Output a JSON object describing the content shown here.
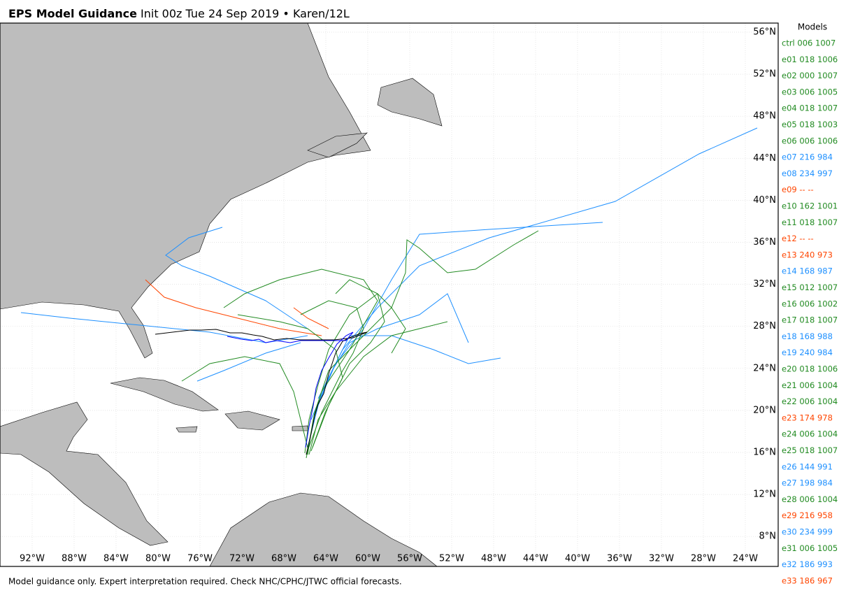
{
  "header": {
    "title_bold": "EPS Model Guidance",
    "title_rest": "Init 00z Tue 24 Sep 2019 • Karen/12L"
  },
  "map": {
    "lon_labels": [
      "92°W",
      "88°W",
      "84°W",
      "80°W",
      "76°W",
      "72°W",
      "68°W",
      "64°W",
      "60°W",
      "56°W",
      "52°W",
      "48°W",
      "44°W",
      "40°W",
      "36°W",
      "32°W",
      "28°W",
      "24°W"
    ],
    "lat_labels": [
      "56°N",
      "52°N",
      "48°N",
      "44°N",
      "40°N",
      "36°N",
      "32°N",
      "28°N",
      "24°N",
      "20°N",
      "16°N",
      "12°N",
      "8°N"
    ]
  },
  "legend": {
    "title": "Models",
    "entries": [
      {
        "label": "ctrl 006 1007",
        "color": "#228b22"
      },
      {
        "label": "e01 018 1006",
        "color": "#228b22"
      },
      {
        "label": "e02 000 1007",
        "color": "#228b22"
      },
      {
        "label": "e03 006 1005",
        "color": "#228b22"
      },
      {
        "label": "e04 018 1007",
        "color": "#228b22"
      },
      {
        "label": "e05 018 1003",
        "color": "#228b22"
      },
      {
        "label": "e06 006 1006",
        "color": "#228b22"
      },
      {
        "label": "e07 216 984",
        "color": "#1e90ff"
      },
      {
        "label": "e08 234 997",
        "color": "#1e90ff"
      },
      {
        "label": "e09 -- --",
        "color": "#ff4500"
      },
      {
        "label": "e10 162 1001",
        "color": "#228b22"
      },
      {
        "label": "e11 018 1007",
        "color": "#228b22"
      },
      {
        "label": "e12 -- --",
        "color": "#ff4500"
      },
      {
        "label": "e13 240 973",
        "color": "#ff4500"
      },
      {
        "label": "e14 168 987",
        "color": "#1e90ff"
      },
      {
        "label": "e15 012 1007",
        "color": "#228b22"
      },
      {
        "label": "e16 006 1002",
        "color": "#228b22"
      },
      {
        "label": "e17 018 1007",
        "color": "#228b22"
      },
      {
        "label": "e18 168 988",
        "color": "#1e90ff"
      },
      {
        "label": "e19 240 984",
        "color": "#1e90ff"
      },
      {
        "label": "e20 018 1006",
        "color": "#228b22"
      },
      {
        "label": "e21 006 1004",
        "color": "#228b22"
      },
      {
        "label": "e22 006 1004",
        "color": "#228b22"
      },
      {
        "label": "e23 174 978",
        "color": "#ff4500"
      },
      {
        "label": "e24 006 1004",
        "color": "#228b22"
      },
      {
        "label": "e25 018 1007",
        "color": "#228b22"
      },
      {
        "label": "e26 144 991",
        "color": "#1e90ff"
      },
      {
        "label": "e27 198 984",
        "color": "#1e90ff"
      },
      {
        "label": "e28 006 1004",
        "color": "#228b22"
      },
      {
        "label": "e29 216 958",
        "color": "#ff4500"
      },
      {
        "label": "e30 234 999",
        "color": "#1e90ff"
      },
      {
        "label": "e31 006 1005",
        "color": "#228b22"
      },
      {
        "label": "e32 186 993",
        "color": "#1e90ff"
      },
      {
        "label": "e33 186 967",
        "color": "#ff4500"
      }
    ]
  },
  "footer": "Model guidance only. Expert interpretation required. Check NHC/CPHC/JTWC official forecasts."
}
